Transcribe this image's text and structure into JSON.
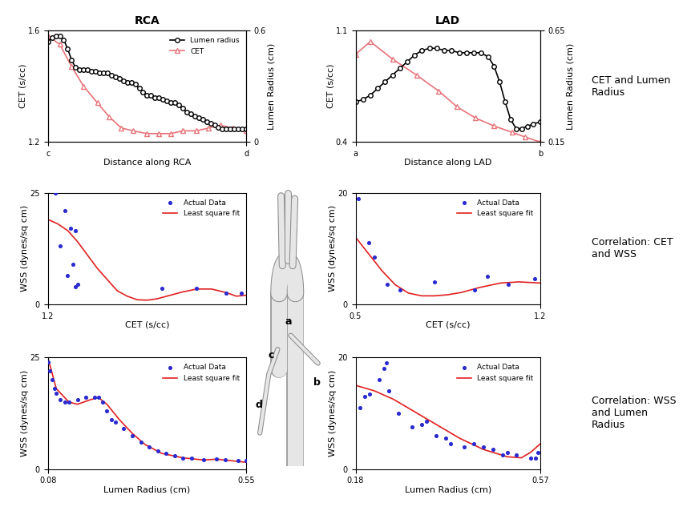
{
  "chart_data": [
    {
      "type": "line",
      "title": "RCA",
      "xlabel": "Distance along RCA",
      "ylabel": "CET (s/cc)",
      "y2label": "Lumen Radius (cm)",
      "xlim": [
        0,
        1
      ],
      "xticks": [
        {
          "value": 0,
          "label": "c"
        },
        {
          "value": 1,
          "label": "d"
        }
      ],
      "ylim": [
        1.2,
        1.6
      ],
      "yticks": [
        1.2,
        1.6
      ],
      "y2lim": [
        0,
        0.6
      ],
      "y2ticks": [
        0,
        0.6
      ],
      "grid": false,
      "legend": "upper right",
      "series": [
        {
          "name": "Lumen radius",
          "color": "#000000",
          "marker": "o",
          "line_style": "solid",
          "axis": "y2",
          "x": [
            0,
            0.02,
            0.04,
            0.06,
            0.08,
            0.1,
            0.12,
            0.14,
            0.16,
            0.18,
            0.2,
            0.22,
            0.24,
            0.26,
            0.28,
            0.3,
            0.32,
            0.34,
            0.36,
            0.38,
            0.4,
            0.42,
            0.44,
            0.46,
            0.48,
            0.5,
            0.52,
            0.54,
            0.56,
            0.58,
            0.6,
            0.62,
            0.64,
            0.66,
            0.68,
            0.7,
            0.72,
            0.74,
            0.76,
            0.78,
            0.8,
            0.82,
            0.84,
            0.86,
            0.88,
            0.9,
            0.92,
            0.94,
            0.96,
            0.98,
            1.0
          ],
          "values": [
            0.54,
            0.56,
            0.57,
            0.57,
            0.55,
            0.5,
            0.44,
            0.4,
            0.39,
            0.39,
            0.39,
            0.38,
            0.38,
            0.37,
            0.37,
            0.37,
            0.36,
            0.35,
            0.34,
            0.33,
            0.32,
            0.32,
            0.31,
            0.29,
            0.27,
            0.25,
            0.25,
            0.24,
            0.24,
            0.23,
            0.22,
            0.21,
            0.21,
            0.2,
            0.18,
            0.16,
            0.15,
            0.14,
            0.13,
            0.12,
            0.11,
            0.1,
            0.09,
            0.08,
            0.07,
            0.07,
            0.07,
            0.07,
            0.07,
            0.07,
            0.07
          ]
        },
        {
          "name": "CET",
          "color": "#e8737a",
          "marker": "^",
          "line_style": "solid",
          "x": [
            0,
            0.06,
            0.12,
            0.18,
            0.25,
            0.31,
            0.37,
            0.43,
            0.5,
            0.56,
            0.62,
            0.68,
            0.75,
            0.81,
            0.87,
            0.93,
            1.0
          ],
          "values": [
            1.58,
            1.55,
            1.47,
            1.4,
            1.34,
            1.29,
            1.25,
            1.24,
            1.23,
            1.23,
            1.23,
            1.24,
            1.24,
            1.25,
            1.26,
            1.25,
            1.24
          ]
        }
      ]
    },
    {
      "type": "line",
      "title": "LAD",
      "xlabel": "Distance along LAD",
      "ylabel": "CET (s/cc)",
      "y2label": "Lumen Radius (cm)",
      "xlim": [
        0,
        1
      ],
      "xticks": [
        {
          "value": 0,
          "label": "a"
        },
        {
          "value": 1,
          "label": "b"
        }
      ],
      "ylim": [
        0.4,
        1.1
      ],
      "yticks": [
        0.4,
        1.1
      ],
      "y2lim": [
        0.15,
        0.65
      ],
      "y2ticks": [
        0.15,
        0.65
      ],
      "grid": false,
      "series": [
        {
          "name": "Lumen radius",
          "color": "#000000",
          "marker": "o",
          "line_style": "solid",
          "axis": "y2",
          "x": [
            0,
            0.04,
            0.08,
            0.12,
            0.16,
            0.2,
            0.24,
            0.28,
            0.32,
            0.36,
            0.4,
            0.44,
            0.48,
            0.52,
            0.56,
            0.6,
            0.64,
            0.68,
            0.72,
            0.75,
            0.78,
            0.81,
            0.84,
            0.87,
            0.9,
            0.93,
            0.96,
            1.0
          ],
          "values": [
            0.33,
            0.34,
            0.36,
            0.39,
            0.42,
            0.45,
            0.48,
            0.51,
            0.54,
            0.56,
            0.57,
            0.57,
            0.56,
            0.56,
            0.55,
            0.55,
            0.55,
            0.55,
            0.53,
            0.49,
            0.42,
            0.33,
            0.25,
            0.21,
            0.21,
            0.22,
            0.23,
            0.24
          ]
        },
        {
          "name": "CET",
          "color": "#e8737a",
          "marker": "^",
          "line_style": "solid",
          "x": [
            0,
            0.08,
            0.2,
            0.33,
            0.45,
            0.55,
            0.65,
            0.75,
            0.85,
            0.92,
            1.0
          ],
          "values": [
            0.95,
            1.03,
            0.92,
            0.82,
            0.72,
            0.62,
            0.55,
            0.5,
            0.46,
            0.43,
            0.4
          ]
        }
      ]
    },
    {
      "type": "scatter",
      "xlabel": "CET (s/cc)",
      "ylabel": "WSS (dynes/sq cm)",
      "xlim": [
        1.2,
        1.6
      ],
      "xticks": [
        1.2
      ],
      "ylim": [
        0,
        25
      ],
      "yticks": [
        0,
        25
      ],
      "grid": false,
      "legend": "upper right",
      "series": [
        {
          "name": "Actual Data",
          "type": "scatter",
          "color": "#2a2ad0",
          "marker": "o",
          "x": [
            1.215,
            1.225,
            1.235,
            1.245,
            1.255,
            1.24,
            1.25,
            1.255,
            1.26,
            1.43,
            1.5,
            1.56,
            1.59
          ],
          "values": [
            25,
            13,
            21,
            17,
            16.5,
            6.5,
            9,
            4,
            4.5,
            3.5,
            3.5,
            2.5,
            2.5
          ]
        },
        {
          "name": "Least square fit",
          "type": "line",
          "color": "#e02020",
          "line_style": "solid",
          "x": [
            1.2,
            1.22,
            1.24,
            1.26,
            1.28,
            1.3,
            1.32,
            1.34,
            1.36,
            1.38,
            1.4,
            1.42,
            1.44,
            1.47,
            1.5,
            1.53,
            1.56,
            1.58,
            1.6
          ],
          "values": [
            19,
            18,
            16.5,
            14,
            11,
            8,
            5.5,
            3,
            1.8,
            1,
            0.9,
            1.2,
            1.8,
            2.7,
            3.4,
            3.4,
            2.6,
            1.8,
            2
          ]
        }
      ]
    },
    {
      "type": "scatter",
      "xlabel": "CET (s/cc)",
      "ylabel": "WSS (dynes/sq cm)",
      "xlim": [
        0.5,
        1.2
      ],
      "xticks": [
        0.5,
        1.2
      ],
      "ylim": [
        0,
        20
      ],
      "yticks": [
        0,
        20
      ],
      "grid": false,
      "legend": "upper right",
      "series": [
        {
          "name": "Actual Data",
          "type": "scatter",
          "color": "#2a2ad0",
          "marker": "o",
          "x": [
            0.51,
            0.55,
            0.57,
            0.62,
            0.67,
            0.8,
            0.95,
            1.0,
            1.08,
            1.18
          ],
          "values": [
            19,
            11,
            8.5,
            3.5,
            2.5,
            4,
            2.5,
            5,
            3.5,
            4.5
          ]
        },
        {
          "name": "Least square fit",
          "type": "line",
          "color": "#e02020",
          "line_style": "solid",
          "x": [
            0.5,
            0.55,
            0.6,
            0.65,
            0.7,
            0.75,
            0.8,
            0.85,
            0.9,
            0.97,
            1.05,
            1.12,
            1.2
          ],
          "values": [
            12,
            9,
            6,
            3.5,
            2,
            1.5,
            1.5,
            1.7,
            2.1,
            3,
            3.8,
            4,
            3.8
          ]
        }
      ]
    },
    {
      "type": "scatter",
      "xlabel": "Lumen Radius (cm)",
      "ylabel": "WSS (dynes/sq cm)",
      "xlim": [
        0.08,
        0.55
      ],
      "xticks": [
        0.08,
        0.55
      ],
      "ylim": [
        0,
        25
      ],
      "yticks": [
        0,
        25
      ],
      "grid": false,
      "legend": "upper right",
      "series": [
        {
          "name": "Actual Data",
          "type": "scatter",
          "color": "#2a2ad0",
          "marker": "o",
          "x": [
            0.08,
            0.085,
            0.09,
            0.095,
            0.1,
            0.11,
            0.12,
            0.13,
            0.15,
            0.17,
            0.19,
            0.2,
            0.21,
            0.22,
            0.23,
            0.24,
            0.26,
            0.28,
            0.3,
            0.32,
            0.34,
            0.36,
            0.38,
            0.4,
            0.42,
            0.45,
            0.48,
            0.5,
            0.53,
            0.55
          ],
          "values": [
            24,
            22,
            20,
            18,
            17,
            15.5,
            15,
            15,
            15.5,
            16,
            16,
            16,
            15,
            13,
            11,
            10.5,
            9,
            7.5,
            6,
            5,
            4,
            3.5,
            3,
            2.5,
            2.5,
            2,
            2.2,
            2,
            1.8,
            1.8
          ]
        },
        {
          "name": "Least square fit",
          "type": "line",
          "color": "#e02020",
          "line_style": "solid",
          "x": [
            0.08,
            0.1,
            0.13,
            0.15,
            0.18,
            0.2,
            0.22,
            0.25,
            0.28,
            0.31,
            0.35,
            0.4,
            0.45,
            0.48,
            0.5,
            0.55
          ],
          "values": [
            25,
            18,
            15,
            14.5,
            15.5,
            16,
            14.5,
            11,
            8,
            5.5,
            3.5,
            2.5,
            2,
            2.2,
            2,
            1.5
          ]
        }
      ]
    },
    {
      "type": "scatter",
      "xlabel": "Lumen Radius (cm)",
      "ylabel": "WSS (dynes/sq cm)",
      "xlim": [
        0.18,
        0.57
      ],
      "xticks": [
        0.18,
        0.57
      ],
      "ylim": [
        0,
        20
      ],
      "yticks": [
        0,
        20
      ],
      "grid": false,
      "legend": "upper right",
      "series": [
        {
          "name": "Actual Data",
          "type": "scatter",
          "color": "#2a2ad0",
          "marker": "o",
          "x": [
            0.19,
            0.2,
            0.21,
            0.23,
            0.24,
            0.245,
            0.25,
            0.27,
            0.3,
            0.32,
            0.33,
            0.35,
            0.37,
            0.38,
            0.41,
            0.43,
            0.45,
            0.47,
            0.49,
            0.5,
            0.52,
            0.55,
            0.56,
            0.565
          ],
          "values": [
            11,
            13,
            13.5,
            16,
            18,
            19,
            14,
            10,
            7.5,
            8,
            8.5,
            6,
            5.5,
            4.5,
            4,
            4.5,
            4,
            3.5,
            2.5,
            3,
            2.5,
            2,
            2,
            3
          ]
        },
        {
          "name": "Least square fit",
          "type": "line",
          "color": "#e02020",
          "line_style": "solid",
          "x": [
            0.18,
            0.22,
            0.26,
            0.3,
            0.35,
            0.4,
            0.45,
            0.5,
            0.53,
            0.55,
            0.57
          ],
          "values": [
            15,
            14,
            12.5,
            10.5,
            8,
            5.5,
            3.5,
            2.2,
            2,
            3,
            4.5
          ]
        }
      ]
    }
  ],
  "row_labels": [
    "CET and Lumen Radius",
    "Correlation: CET and WSS",
    "Correlation: WSS and Lumen Radius"
  ],
  "diagram": {
    "labels": [
      "a",
      "b",
      "c",
      "d"
    ]
  }
}
